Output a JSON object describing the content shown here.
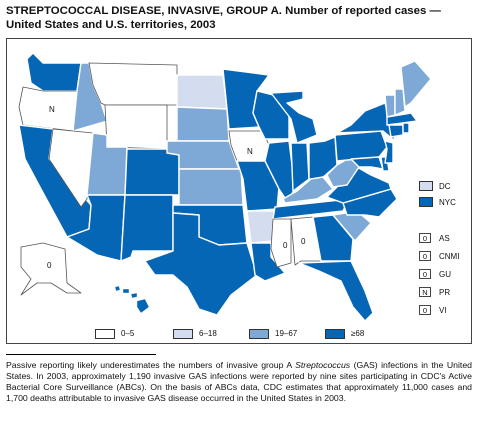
{
  "title": "STREPTOCOCCAL DISEASE, INVASIVE, GROUP A. Number of reported cases — United States and U.S. territories, 2003",
  "colors": {
    "none": "#ffffff",
    "low": "#d4ddf0",
    "mid": "#7ea8d6",
    "high": "#0566b5"
  },
  "legend": [
    {
      "label": "0–5",
      "level": "none"
    },
    {
      "label": "6–18",
      "level": "low"
    },
    {
      "label": "19–67",
      "level": "mid"
    },
    {
      "label": "≥68",
      "level": "high"
    }
  ],
  "map_labels": {
    "oregon": "N",
    "iowa": "N",
    "mississippi": "0",
    "alabama": "0",
    "alaska": "0"
  },
  "side_areas": [
    {
      "code": "DC",
      "level": "low"
    },
    {
      "code": "NYC",
      "level": "high"
    }
  ],
  "territories": [
    {
      "value": "0",
      "code": "AS"
    },
    {
      "value": "0",
      "code": "CNMI"
    },
    {
      "value": "0",
      "code": "GU"
    },
    {
      "value": "N",
      "code": "PR"
    },
    {
      "value": "0",
      "code": "VI"
    }
  ],
  "states": {
    "WA": "high",
    "OR": "none",
    "ID": "mid",
    "MT": "none",
    "WY": "none",
    "CA": "high",
    "NV": "none",
    "UT": "mid",
    "AZ": "high",
    "CO": "high",
    "NM": "high",
    "ND": "low",
    "SD": "mid",
    "NE": "mid",
    "KS": "mid",
    "OK": "high",
    "TX": "high",
    "MN": "high",
    "IA": "none",
    "MO": "high",
    "AR": "low",
    "LA": "high",
    "WI": "high",
    "IL": "high",
    "MI": "high",
    "IN": "high",
    "OH": "high",
    "KY": "mid",
    "TN": "high",
    "MS": "none",
    "AL": "none",
    "GA": "high",
    "FL": "high",
    "SC": "mid",
    "NC": "high",
    "VA": "high",
    "WV": "mid",
    "MD": "high",
    "DE": "high",
    "NJ": "high",
    "PA": "high",
    "NY": "high",
    "CT": "high",
    "RI": "high",
    "MA": "high",
    "VT": "mid",
    "NH": "mid",
    "ME": "mid",
    "AK": "none",
    "HI": "high"
  },
  "footnote_parts": {
    "a": "Passive reporting likely underestimates the numbers of invasive group A ",
    "b": "Streptococcus",
    "c": " (GAS) infections in the United States. In 2003, approximately 1,190 invasive GAS infections were reported by nine sites participating in CDC's Active Bacterial Core Surveillance (ABCs). On the basis of ABCs data, CDC estimates that approximately 11,000 cases and 1,700 deaths attributable to invasive GAS disease occurred in the United States in 2003."
  }
}
